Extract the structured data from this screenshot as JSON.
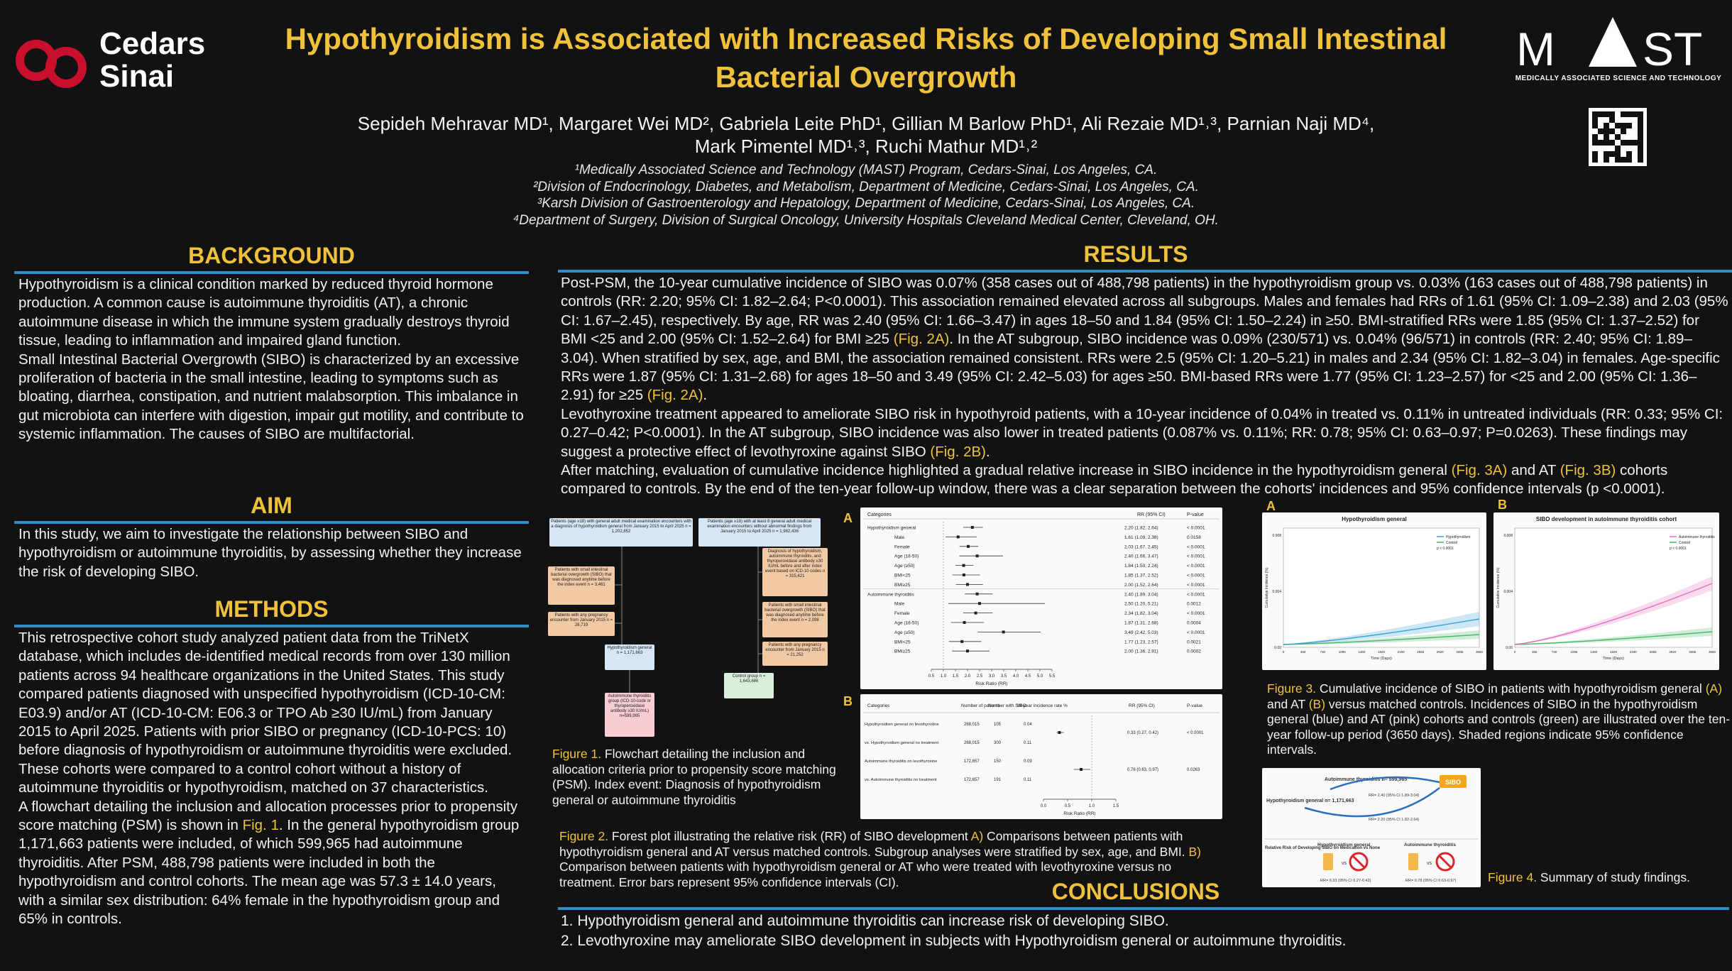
{
  "header": {
    "title": "Hypothyroidism is Associated with Increased Risks of Developing Small Intestinal Bacterial Overgrowth",
    "authors_line1": "Sepideh Mehravar MD¹, Margaret Wei MD², Gabriela Leite PhD¹, Gillian M Barlow PhD¹, Ali Rezaie MD¹˒³,  Parnian Naji MD⁴,",
    "authors_line2": "Mark Pimentel MD¹˒³, Ruchi Mathur MD¹˒²",
    "affiliations": [
      "¹Medically Associated Science and Technology (MAST) Program, Cedars-Sinai, Los Angeles, CA.",
      "²Division of Endocrinology, Diabetes, and Metabolism, Department of Medicine, Cedars-Sinai, Los Angeles, CA.",
      "³Karsh Division of Gastroenterology and Hepatology, Department of Medicine, Cedars-Sinai, Los Angeles, CA.",
      "⁴Department of Surgery, Division of Surgical Oncology, University Hospitals Cleveland Medical Center, Cleveland, OH."
    ],
    "logo_left_line1": "Cedars",
    "logo_left_line2": "Sinai",
    "logo_right_word": "MAST",
    "logo_right_sub": "MEDICALLY ASSOCIATED SCIENCE AND TECHNOLOGY",
    "brand_red": "#c8102e",
    "accent_gold": "#f0c23b",
    "rule_blue": "#2f8fc4"
  },
  "background": {
    "heading": "BACKGROUND",
    "p1": "Hypothyroidism is a clinical condition marked by reduced thyroid hormone production. A common cause is autoimmune thyroiditis (AT), a chronic autoimmune disease in which the immune system gradually destroys thyroid tissue, leading to inflammation and impaired gland function.",
    "p2": "Small Intestinal Bacterial Overgrowth (SIBO) is characterized by an excessive proliferation of bacteria in the small intestine, leading to symptoms such as bloating, diarrhea, constipation, and nutrient malabsorption. This imbalance in gut microbiota can interfere with digestion, impair gut motility, and contribute to systemic inflammation. The causes of SIBO are multifactorial."
  },
  "aim": {
    "heading": "AIM",
    "text": "In this study, we aim to investigate the relationship between SIBO and hypothyroidism or autoimmune thyroiditis, by assessing whether they increase the risk of developing SIBO."
  },
  "methods": {
    "heading": "METHODS",
    "p1": "This retrospective cohort study analyzed patient data from the TriNetX database, which includes de-identified medical records from over 130 million patients across 94 healthcare organizations in the United States. This study compared patients diagnosed with unspecified hypothyroidism (ICD-10-CM: E03.9) and/or AT (ICD-10-CM: E06.3 or TPO Ab ≥30 IU/mL) from January 2015 to April 2025. Patients with prior SIBO or pregnancy (ICD-10-PCS: 10) before diagnosis of hypothyroidism or autoimmune thyroiditis were excluded. These cohorts were compared to a control cohort without a history of autoimmune thyroiditis or hypothyroidism, matched on 37 characteristics.",
    "p2_a": "A flowchart detailing the inclusion and allocation processes prior to propensity score matching (PSM) is shown in ",
    "p2_ref": "Fig. 1",
    "p2_b": ". In the general hypothyroidism group 1,171,663 patients were included, of which 599,965 had autoimmune thyroiditis. After PSM, 488,798 patients were included in both the hypothyroidism and control cohorts. The mean age was 57.3 ± 14.0 years, with a similar sex distribution: 64% female in the hypothyroidism group and 65% in controls."
  },
  "results": {
    "heading": "RESULTS",
    "p1_a": "Post-PSM, the 10-year cumulative incidence of SIBO was 0.07% (358 cases out of 488,798 patients) in the hypothyroidism group vs. 0.03% (163 cases out of 488,798 patients) in controls (RR: 2.20; 95% CI: 1.82–2.64; P<0.0001). This association remained elevated across all subgroups. Males and females had RRs of 1.61 (95% CI: 1.09–2.38) and 2.03 (95% CI: 1.67–2.45), respectively. By age, RR was 2.40 (95% CI: 1.66–3.47) in ages 18–50 and 1.84 (95% CI: 1.50–2.24) in ≥50. BMI-stratified RRs were 1.85 (95% CI: 1.37–2.52) for BMI <25 and 2.00 (95% CI: 1.52–2.64) for BMI ≥25 ",
    "p1_ref1": "(Fig. 2A)",
    "p1_b": ". In the AT subgroup, SIBO incidence was 0.09% (230/571) vs. 0.04% (96/571) in controls (RR: 2.40; 95% CI: 1.89–3.04). When stratified by sex, age, and BMI, the association remained consistent. RRs were 2.5 (95% CI: 1.20–5.21) in males and 2.34 (95% CI: 1.82–3.04) in females. Age-specific RRs were 1.87 (95% CI: 1.31–2.68) for ages 18–50 and 3.49 (95% CI: 2.42–5.03) for ages ≥50. BMI-based RRs were 1.77 (95% CI: 1.23–2.57) for <25 and 2.00 (95% CI: 1.36–2.91) for ≥25 ",
    "p1_ref2": "(Fig. 2A)",
    "p1_c": ".",
    "p2_a": "Levothyroxine treatment appeared to ameliorate SIBO risk in hypothyroid patients, with a 10-year incidence of 0.04% in treated vs. 0.11% in untreated individuals (RR: 0.33; 95% CI: 0.27–0.42; P<0.0001). In the AT subgroup, SIBO incidence was also lower in treated patients (0.087% vs. 0.11%; RR: 0.78; 95% CI: 0.63–0.97; P=0.0263). These findings may suggest a protective effect of levothyroxine against SIBO ",
    "p2_ref": "(Fig. 2B)",
    "p2_b": ".",
    "p3_a": "After matching, evaluation of cumulative incidence highlighted a gradual relative increase in SIBO incidence in the hypothyroidism general ",
    "p3_ref1": "(Fig. 3A)",
    "p3_b": " and AT ",
    "p3_ref2": "(Fig. 3B)",
    "p3_c": " cohorts compared to controls. By the end of the ten-year follow-up window, there was a clear separation between the cohorts' incidences and 95% confidence intervals (p <0.0001)."
  },
  "figure1": {
    "caption_label": "Figure 1.",
    "caption_text": " Flowchart detailing the inclusion and allocation criteria prior to propensity score matching (PSM).  Index event: Diagnosis of hypothyroidism general or autoimmune thyroiditis",
    "boxes": {
      "left_top": "Patients (age ≥18) with general adult medical examination encounters with a diagnosis of hypothyroidism general from January 2015 to April 2025 n = 1,202,852",
      "right_top": "Patients (age ≥18) with at least 8 general adult medical examination encounters without abnormal findings from January 2015 to April 2025 n = 1,982,436",
      "left_exc1": "Patients with small intestinal bacterial overgrowth (SIBO) that was diagnosed anytime before the index event n = 3,461",
      "left_exc2": "Patients with any pregnancy encounter from January 2015 n = 28,719",
      "right_exc1": "Diagnosis of hypothyroidism, autoimmune thyroiditis, and thyroperoxidase antibody ≥30 IU/mL before and after index event based on ICD-10 codes n = 315,421",
      "right_exc2": "Patients with small intestinal bacterial overgrowth (SIBO) that was diagnosed anytime before the index event n = 2,098",
      "right_exc3": "Patients with any pregnancy encounter from January 2015 n = 21,252",
      "hypo": "Hypothyroidism general n = 1,171,663",
      "at": "Autoimmune thyroiditis group (ICD-10-code or thyroperoxidase antibody ≥30 IU/mL) n=599,965",
      "control": "Control group n = 1,643,686"
    }
  },
  "figure2": {
    "caption_label": "Figure 2.",
    "caption_a": " Forest plot illustrating the relative risk (RR) of SIBO development ",
    "caption_A": "A)",
    "caption_b": " Comparisons between patients with hypothyroidism general and AT versus matched controls. Subgroup analyses were stratified by sex, age, and BMI. ",
    "caption_B": "B)",
    "caption_c": " Comparison between patients with hypothyroidism general or AT who were treated with levothyroxine versus no treatment. Error bars represent 95% confidence intervals (CI).",
    "panel_a_letter": "A",
    "panel_b_letter": "B",
    "panel_a_headers": [
      "Categories",
      "RR (95% CI)",
      "P-value"
    ],
    "panel_a_rows": [
      {
        "label": "Hypothyroidism general",
        "rr": 2.2,
        "lo": 1.82,
        "hi": 2.64,
        "text": "2.20 (1.82, 2.64)",
        "p": "< 0.0001"
      },
      {
        "label": "Male",
        "rr": 1.61,
        "lo": 1.09,
        "hi": 2.38,
        "text": "1.61 (1.09, 2.38)",
        "p": "0.0158"
      },
      {
        "label": "Female",
        "rr": 2.03,
        "lo": 1.67,
        "hi": 2.45,
        "text": "2.03 (1.67, 2.45)",
        "p": "< 0.0001"
      },
      {
        "label": "Age (18-50)",
        "rr": 2.4,
        "lo": 1.66,
        "hi": 3.47,
        "text": "2.40 (1.66, 3.47)",
        "p": "< 0.0001"
      },
      {
        "label": "Age (≥50)",
        "rr": 1.84,
        "lo": 1.5,
        "hi": 2.24,
        "text": "1.84 (1.50, 2.24)",
        "p": "< 0.0001"
      },
      {
        "label": "BMI<25",
        "rr": 1.85,
        "lo": 1.37,
        "hi": 2.52,
        "text": "1.85 (1.37, 2.52)",
        "p": "< 0.0001"
      },
      {
        "label": "BMI≥25",
        "rr": 2.0,
        "lo": 1.52,
        "hi": 2.64,
        "text": "2.00 (1.52, 2.64)",
        "p": "< 0.0001"
      },
      {
        "label": "Autoimmune thyroiditis",
        "rr": 2.4,
        "lo": 1.89,
        "hi": 3.04,
        "text": "2.40 (1.89, 3.04)",
        "p": "< 0.0001"
      },
      {
        "label": "Male",
        "rr": 2.5,
        "lo": 1.2,
        "hi": 5.21,
        "text": "2.50 (1.20, 5.21)",
        "p": "0.0012"
      },
      {
        "label": "Female",
        "rr": 2.34,
        "lo": 1.82,
        "hi": 3.04,
        "text": "2.34 (1.82, 3.04)",
        "p": "< 0.0001"
      },
      {
        "label": "Age (18-50)",
        "rr": 1.87,
        "lo": 1.31,
        "hi": 2.68,
        "text": "1.87 (1.31, 2.68)",
        "p": "0.0004"
      },
      {
        "label": "Age (≥50)",
        "rr": 3.49,
        "lo": 2.42,
        "hi": 5.03,
        "text": "3.49 (2.42, 5.03)",
        "p": "< 0.0001"
      },
      {
        "label": "BMI<25",
        "rr": 1.77,
        "lo": 1.23,
        "hi": 2.57,
        "text": "1.77 (1.23, 2.57)",
        "p": "0.0021"
      },
      {
        "label": "BMI≥25",
        "rr": 2.0,
        "lo": 1.36,
        "hi": 2.91,
        "text": "2.00 (1.36, 2.91)",
        "p": "0.0002"
      }
    ],
    "panel_a_ticks": [
      "0.5",
      "1.0",
      "1.5",
      "2.0",
      "2.5",
      "3.0",
      "3.5",
      "4.0",
      "4.5",
      "5.0",
      "5.5"
    ],
    "panel_a_xlabel": "Risk Ratio (RR)",
    "panel_b_headers": [
      "Categories",
      "Number of patients",
      "Number with SIBO",
      "10-year incidence rate %",
      "RR (95% CI)",
      "P-value"
    ],
    "panel_b_rows": [
      {
        "label": "Hypothyroidism general on levothyroxine",
        "n": "268,015",
        "sibo": "105",
        "inc": "0.04",
        "rr": 0.33,
        "lo": 0.27,
        "hi": 0.42,
        "text": "0.33 (0.27, 0.42)",
        "p": "< 0.0001"
      },
      {
        "label": "vs. Hypothyroidism general no treatment",
        "n": "268,015",
        "sibo": "300",
        "inc": "0.11",
        "rr": null,
        "text": "",
        "p": ""
      },
      {
        "label": "Autoimmune thyroiditis on levothyroxine",
        "n": "172,657",
        "sibo": "150",
        "inc": "0.09",
        "rr": 0.78,
        "lo": 0.63,
        "hi": 0.97,
        "text": "0.78 (0.63, 0.97)",
        "p": "0.0263"
      },
      {
        "label": "vs. Autoimmune thyroiditis no treatment",
        "n": "172,657",
        "sibo": "191",
        "inc": "0.11",
        "rr": null,
        "text": "",
        "p": ""
      }
    ],
    "panel_b_ticks": [
      "0.0",
      "0.5",
      "1.0",
      "1.5"
    ],
    "panel_b_xlabel": "Risk Ratio (RR)"
  },
  "figure3": {
    "caption_label": "Figure 3.",
    "caption_a": " Cumulative incidence of SIBO in patients with hypothyroidism general ",
    "caption_A": "(A)",
    "caption_b": " and AT ",
    "caption_B": "(B)",
    "caption_c": " versus matched controls. Incidences of SIBO in the hypothyroidism general (blue) and AT (pink) cohorts and controls (green) are illustrated over the ten-year follow-up period (3650 days). Shaded regions indicate 95% confidence intervals.",
    "panel_a_letter": "A",
    "panel_b_letter": "B",
    "panel_a_title": "Hypothyroidism general",
    "panel_b_title": "SIBO development in autoimmune thyroiditis cohort",
    "panel_a_legend": [
      "Hypothyroidism",
      "Control",
      "p < 0.0001"
    ],
    "panel_b_legend": [
      "Autoimmune thyroiditis",
      "Control",
      "p < 0.0001"
    ],
    "xlabel": "Time (Days)",
    "ylabel": "Cumulative Incidence (%)",
    "x_ticks": [
      "0",
      "365",
      "730",
      "1095",
      "1460",
      "1825",
      "2190",
      "2555",
      "2920",
      "3285",
      "3650"
    ],
    "y_ticks_a": [
      "0.00",
      "0.004",
      "0.008"
    ],
    "y_ticks_b": [
      "0.00",
      "0.004",
      "0.008"
    ],
    "color_hypo": "#3aa0d8",
    "color_at": "#e46fc0",
    "color_control": "#47b86a"
  },
  "figure4": {
    "caption_label": "Figure 4.",
    "caption_text": " Summary of study findings.",
    "at_label": "Autoimmune thyroiditis n= 599,965",
    "hypo_label": "Hypothyroidism general n= 1,171,663",
    "sibo_label": "SIBO",
    "rr_top": "RR= 2.40 (95% CI 1.89-3.04)",
    "rr_bottom": "RR= 2.20 (95% CI 1.82-2.64)",
    "side_label": "Relative Risk of Developing SIBO on Medication vs None",
    "col1": "Hypothyroidism general",
    "col2": "Autoimmune thyroiditis",
    "rr1": "RR= 0.33 (95% CI 0.27-0.42)",
    "rr2": "RR= 0.78 (95% CI 0.63-0.97)",
    "vs": "vs"
  },
  "conclusions": {
    "heading": "CONCLUSIONS",
    "items": [
      "1.   Hypothyroidism general and autoimmune thyroiditis can increase risk of developing SIBO.",
      "2.   Levothyroxine may ameliorate SIBO development in subjects with Hypothyroidism general or autoimmune thyroiditis."
    ]
  }
}
